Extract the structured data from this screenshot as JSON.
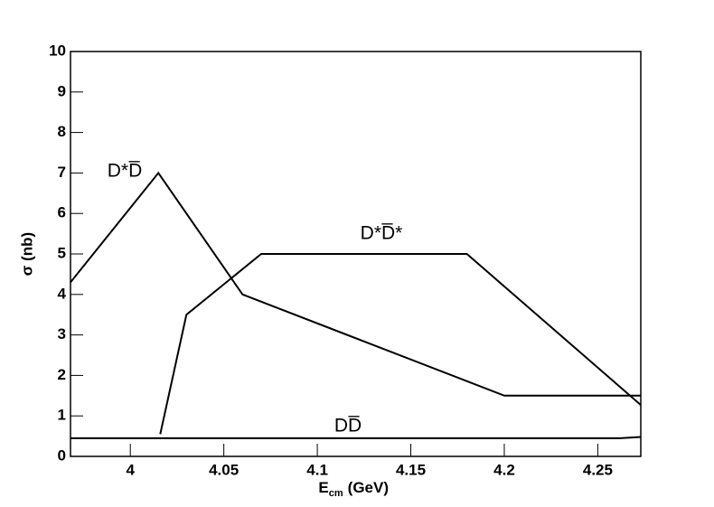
{
  "chart_data": {
    "type": "line",
    "xlabel": {
      "main": "E",
      "sub": "cm",
      "rest": "(GeV)"
    },
    "ylabel": "σ (nb)",
    "xlim": [
      3.968,
      4.273
    ],
    "ylim": [
      0,
      10
    ],
    "xticks": [
      4,
      4.05,
      4.1,
      4.15,
      4.2,
      4.25
    ],
    "yticks": [
      0,
      1,
      2,
      3,
      4,
      5,
      6,
      7,
      8,
      9,
      10
    ],
    "series": [
      {
        "name": "D*D̅",
        "color": "#000000",
        "x": [
          3.968,
          4.015,
          4.06,
          4.2,
          4.273
        ],
        "values": [
          4.3,
          7,
          4,
          1.5,
          1.5
        ]
      },
      {
        "name": "D*D̅*",
        "color": "#000000",
        "x": [
          4.016,
          4.03,
          4.07,
          4.18,
          4.273
        ],
        "values": [
          0.55,
          3.5,
          5,
          5,
          1.27
        ]
      },
      {
        "name": "DD̅",
        "color": "#000000",
        "x": [
          3.968,
          4.262,
          4.273
        ],
        "values": [
          0.45,
          0.45,
          0.48
        ]
      }
    ]
  }
}
